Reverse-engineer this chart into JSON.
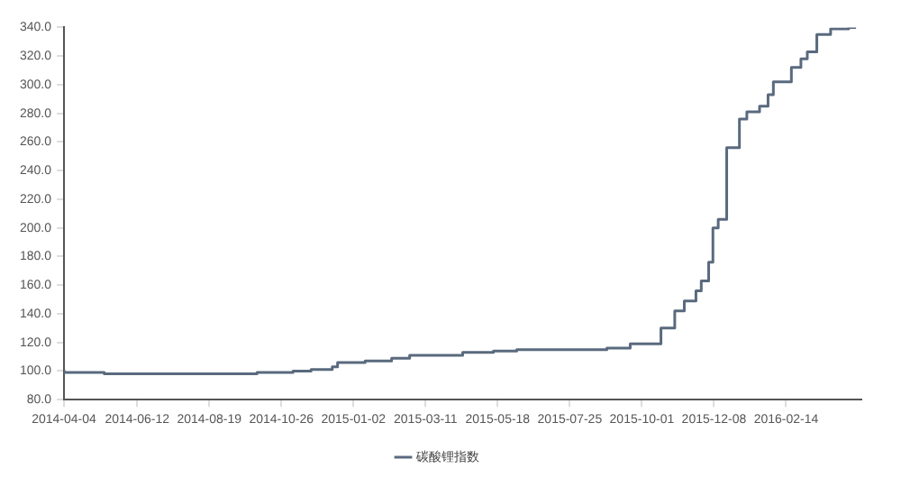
{
  "chart_data": {
    "type": "step",
    "legend": "bottom",
    "grid": false,
    "marker": "none",
    "line_style": "solid",
    "xlim": [
      "2014-04-04",
      "2016-04-25"
    ],
    "xticks": [
      "2014-04-04",
      "2014-06-12",
      "2014-08-19",
      "2014-10-26",
      "2015-01-02",
      "2015-03-11",
      "2015-05-18",
      "2015-07-25",
      "2015-10-01",
      "2015-12-08",
      "2016-02-14"
    ],
    "ylim": [
      80,
      340
    ],
    "yticks": [
      {
        "value": 80,
        "label": "80.0"
      },
      {
        "value": 100,
        "label": "100.0"
      },
      {
        "value": 120,
        "label": "120.0"
      },
      {
        "value": 140,
        "label": "140.0"
      },
      {
        "value": 160,
        "label": "160.0"
      },
      {
        "value": 180,
        "label": "180.0"
      },
      {
        "value": 200,
        "label": "200.0"
      },
      {
        "value": 220,
        "label": "220.0"
      },
      {
        "value": 240,
        "label": "240.0"
      },
      {
        "value": 260,
        "label": "260.0"
      },
      {
        "value": 280,
        "label": "280.0"
      },
      {
        "value": 300,
        "label": "300.0"
      },
      {
        "value": 320,
        "label": "320.0"
      },
      {
        "value": 340,
        "label": "340.0"
      }
    ],
    "series": [
      {
        "name": "碳酸锂指数",
        "color": "#5a6a7e",
        "x": [
          "2014-04-04",
          "2014-05-12",
          "2014-10-03",
          "2014-11-06",
          "2014-11-23",
          "2014-12-13",
          "2014-12-18",
          "2015-01-13",
          "2015-02-07",
          "2015-02-24",
          "2015-04-15",
          "2015-05-14",
          "2015-06-05",
          "2015-08-29",
          "2015-09-20",
          "2015-10-19",
          "2015-11-01",
          "2015-11-10",
          "2015-11-21",
          "2015-11-26",
          "2015-12-03",
          "2015-12-07",
          "2015-12-12",
          "2015-12-20",
          "2016-01-01",
          "2016-01-08",
          "2016-01-20",
          "2016-01-28",
          "2016-02-02",
          "2016-02-19",
          "2016-02-28",
          "2016-03-05",
          "2016-03-14",
          "2016-03-27",
          "2016-04-13",
          "2016-04-20"
        ],
        "values": [
          101,
          99,
          98,
          99,
          100,
          101,
          103,
          106,
          107,
          109,
          111,
          113,
          114,
          115,
          116,
          119,
          130,
          142,
          149,
          156,
          163,
          176,
          200,
          206,
          256,
          276,
          281,
          285,
          293,
          302,
          312,
          318,
          323,
          335,
          339,
          340
        ]
      }
    ]
  }
}
